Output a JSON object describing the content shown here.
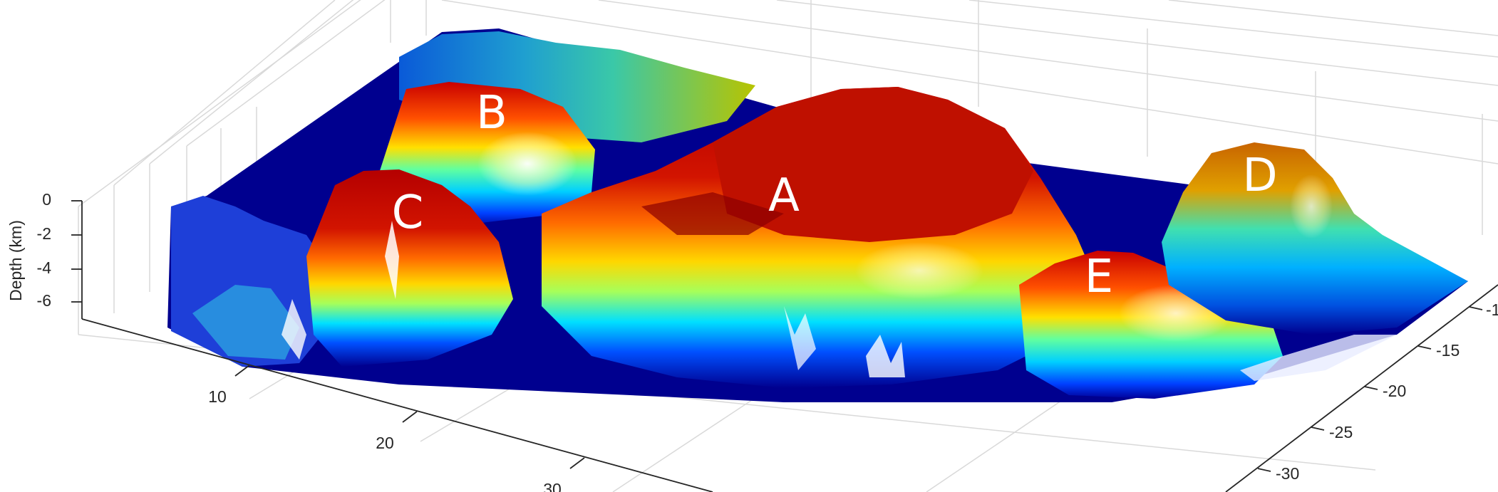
{
  "chart_data": {
    "type": "surface",
    "zlabel": "Depth (km)",
    "x_ticks": [
      "10",
      "20",
      "30"
    ],
    "y_ticks": [
      "-1",
      "-15",
      "-20",
      "-25",
      "-30"
    ],
    "z_ticks": [
      "0",
      "-2",
      "-4",
      "-6"
    ],
    "grid": true,
    "colormap": "jet",
    "peak_labels": [
      "A",
      "B",
      "C",
      "D",
      "E"
    ]
  }
}
